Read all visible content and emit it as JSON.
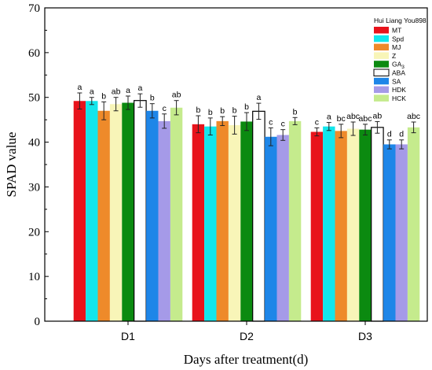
{
  "chart_data": {
    "type": "bar",
    "title": "",
    "xlabel": "Days after treatment(d)",
    "ylabel": "SPAD value",
    "ylim": [
      0,
      70
    ],
    "yticks": [
      "0",
      "10",
      "20",
      "30",
      "40",
      "50",
      "60",
      "70"
    ],
    "grid": false,
    "legend_position": "top-right",
    "legend_title": "Hui Liang You898",
    "categories": [
      "D1",
      "D2",
      "D3"
    ],
    "series": [
      {
        "name": "MT",
        "color": "#e8131b",
        "values": [
          49.2,
          44.0,
          42.3
        ],
        "errors": [
          1.8,
          1.9,
          0.9
        ],
        "letters": [
          "a",
          "b",
          "c"
        ]
      },
      {
        "name": "Spd",
        "color": "#12e6ec",
        "values": [
          49.2,
          43.5,
          43.5
        ],
        "errors": [
          0.8,
          1.9,
          0.9
        ],
        "letters": [
          "a",
          "b",
          "a"
        ]
      },
      {
        "name": "MJ",
        "color": "#ee8a2a",
        "values": [
          47.0,
          44.7,
          42.5
        ],
        "errors": [
          2.0,
          1.0,
          1.5
        ],
        "letters": [
          "b",
          "b",
          "bc"
        ]
      },
      {
        "name": "Z",
        "color": "#f8f5b8",
        "values": [
          48.5,
          43.8,
          43.0
        ],
        "errors": [
          1.5,
          2.0,
          1.5
        ],
        "letters": [
          "ab",
          "b",
          "abc"
        ]
      },
      {
        "name": "GA3",
        "color": "#0b8a10",
        "values": [
          48.8,
          44.6,
          42.8
        ],
        "errors": [
          1.5,
          2.0,
          1.2
        ],
        "letters": [
          "a",
          "b",
          "abc"
        ]
      },
      {
        "name": "ABA",
        "color": "#ffffff",
        "values": [
          49.3,
          46.9,
          43.3
        ],
        "errors": [
          1.5,
          1.8,
          1.3
        ],
        "letters": [
          "a",
          "a",
          "ab"
        ]
      },
      {
        "name": "SA",
        "color": "#1e86e8",
        "values": [
          47.0,
          41.2,
          39.5
        ],
        "errors": [
          1.6,
          2.0,
          1.0
        ],
        "letters": [
          "b",
          "c",
          "d"
        ]
      },
      {
        "name": "HDK",
        "color": "#a59ae8",
        "values": [
          44.7,
          41.6,
          39.5
        ],
        "errors": [
          1.6,
          1.2,
          1.0
        ],
        "letters": [
          "c",
          "c",
          "d"
        ]
      },
      {
        "name": "HCK",
        "color": "#c5eb8d",
        "values": [
          47.7,
          44.7,
          43.3
        ],
        "errors": [
          1.6,
          0.8,
          1.2
        ],
        "letters": [
          "ab",
          "b",
          "abc"
        ]
      }
    ]
  }
}
